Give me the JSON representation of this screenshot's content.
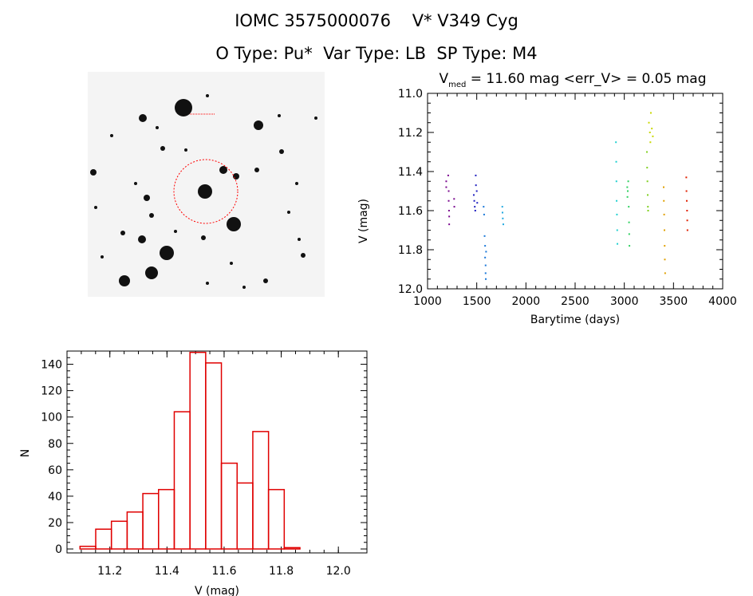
{
  "header": {
    "title_line1": "IOMC 3575000076    V* V349 Cyg",
    "title_line2": "O Type: Pu*  Var Type: LB  SP Type: M4"
  },
  "colors": {
    "histogram": "#e00000",
    "circle": "#ff0000",
    "axes": "#000000"
  },
  "chart_data": [
    {
      "type": "scatter",
      "title_main": "V",
      "title_sub": "med",
      "title_rest": " = 11.60 mag <err_V> = 0.05 mag",
      "xlabel": "Barytime (days)",
      "ylabel": "V (mag)",
      "xlim": [
        1000,
        4000
      ],
      "ylim": [
        12.0,
        11.0
      ],
      "y_inverted": true,
      "x_ticks": [
        1000,
        1500,
        2000,
        2500,
        3000,
        3500,
        4000
      ],
      "y_ticks": [
        "11.0",
        "11.2",
        "11.4",
        "11.6",
        "11.8",
        "12.0"
      ],
      "y_tick_values": [
        11.0,
        11.2,
        11.4,
        11.6,
        11.8,
        12.0
      ],
      "series": [
        {
          "color": "#7b0a8f",
          "points": [
            [
              1190,
              11.45
            ],
            [
              1190,
              11.48
            ],
            [
              1210,
              11.42
            ],
            [
              1215,
              11.5
            ],
            [
              1215,
              11.55
            ],
            [
              1218,
              11.6
            ],
            [
              1220,
              11.63
            ],
            [
              1220,
              11.67
            ],
            [
              1270,
              11.54
            ],
            [
              1272,
              11.58
            ]
          ]
        },
        {
          "color": "#2020c0",
          "points": [
            [
              1470,
              11.52
            ],
            [
              1475,
              11.55
            ],
            [
              1480,
              11.58
            ],
            [
              1485,
              11.6
            ],
            [
              1490,
              11.42
            ],
            [
              1492,
              11.47
            ],
            [
              1500,
              11.5
            ],
            [
              1505,
              11.56
            ]
          ]
        },
        {
          "color": "#1a78d8",
          "points": [
            [
              1570,
              11.58
            ],
            [
              1575,
              11.62
            ],
            [
              1580,
              11.73
            ],
            [
              1585,
              11.78
            ],
            [
              1585,
              11.84
            ],
            [
              1590,
              11.88
            ],
            [
              1590,
              11.92
            ],
            [
              1592,
              11.95
            ],
            [
              1595,
              11.81
            ]
          ]
        },
        {
          "color": "#20a8e0",
          "points": [
            [
              1760,
              11.58
            ],
            [
              1762,
              11.61
            ],
            [
              1765,
              11.64
            ],
            [
              1770,
              11.67
            ]
          ]
        },
        {
          "color": "#20d0d0",
          "points": [
            [
              2915,
              11.25
            ],
            [
              2918,
              11.35
            ],
            [
              2920,
              11.45
            ],
            [
              2922,
              11.55
            ],
            [
              2925,
              11.62
            ],
            [
              2928,
              11.7
            ],
            [
              2930,
              11.77
            ]
          ]
        },
        {
          "color": "#30d060",
          "points": [
            [
              3030,
              11.48
            ],
            [
              3032,
              11.53
            ],
            [
              3035,
              11.5
            ],
            [
              3040,
              11.45
            ],
            [
              3045,
              11.58
            ],
            [
              3048,
              11.66
            ],
            [
              3050,
              11.72
            ],
            [
              3052,
              11.78
            ]
          ]
        },
        {
          "color": "#80d020",
          "points": [
            [
              3230,
              11.3
            ],
            [
              3232,
              11.38
            ],
            [
              3235,
              11.45
            ],
            [
              3238,
              11.52
            ],
            [
              3240,
              11.58
            ],
            [
              3242,
              11.6
            ]
          ]
        },
        {
          "color": "#c8d800",
          "points": [
            [
              3250,
              11.15
            ],
            [
              3260,
              11.2
            ],
            [
              3265,
              11.25
            ],
            [
              3270,
              11.1
            ],
            [
              3280,
              11.18
            ],
            [
              3290,
              11.22
            ]
          ]
        },
        {
          "color": "#e0a000",
          "points": [
            [
              3400,
              11.48
            ],
            [
              3402,
              11.55
            ],
            [
              3405,
              11.62
            ],
            [
              3408,
              11.7
            ],
            [
              3410,
              11.78
            ],
            [
              3412,
              11.85
            ],
            [
              3415,
              11.92
            ]
          ]
        },
        {
          "color": "#e02000",
          "points": [
            [
              3630,
              11.43
            ],
            [
              3632,
              11.5
            ],
            [
              3635,
              11.55
            ],
            [
              3638,
              11.6
            ],
            [
              3640,
              11.65
            ],
            [
              3642,
              11.7
            ]
          ]
        }
      ]
    },
    {
      "type": "bar",
      "subtype": "histogram",
      "xlabel": "V (mag)",
      "ylabel": "N",
      "xlim": [
        11.05,
        12.1
      ],
      "ylim": [
        -3,
        150
      ],
      "x_ticks": [
        "11.2",
        "11.4",
        "11.6",
        "11.8",
        "12.0"
      ],
      "x_tick_values": [
        11.2,
        11.4,
        11.6,
        11.8,
        12.0
      ],
      "y_ticks": [
        "0",
        "20",
        "40",
        "60",
        "80",
        "100",
        "120",
        "140"
      ],
      "y_tick_values": [
        0,
        20,
        40,
        60,
        80,
        100,
        120,
        140
      ],
      "bin_width": 0.055,
      "bin_centers": [
        11.123,
        11.178,
        11.233,
        11.288,
        11.343,
        11.398,
        11.453,
        11.508,
        11.563,
        11.618,
        11.673,
        11.728,
        11.783,
        11.838,
        11.893,
        11.948
      ],
      "values": [
        2,
        15,
        21,
        28,
        42,
        45,
        104,
        149,
        141,
        65,
        50,
        89,
        45,
        1,
        0,
        0
      ]
    }
  ]
}
